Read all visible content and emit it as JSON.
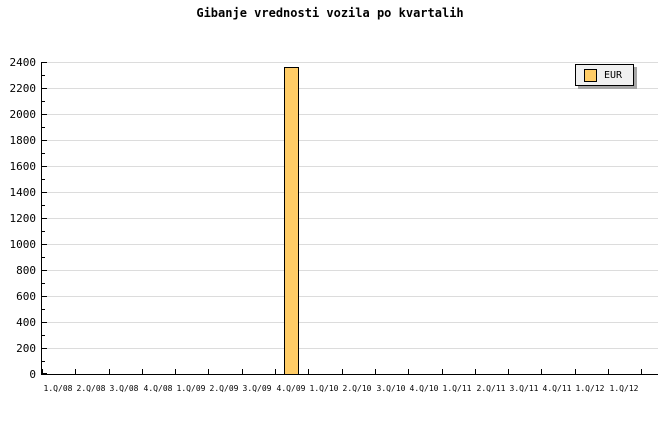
{
  "chart_data": {
    "type": "bar",
    "title": "Gibanje vrednosti vozila po kvartalih",
    "categories": [
      "1.Q/08",
      "2.Q/08",
      "3.Q/08",
      "4.Q/08",
      "1.Q/09",
      "2.Q/09",
      "3.Q/09",
      "4.Q/09",
      "1.Q/10",
      "2.Q/10",
      "3.Q/10",
      "4.Q/10",
      "1.Q/11",
      "2.Q/11",
      "3.Q/11",
      "4.Q/11",
      "1.Q/12",
      "1.Q/12"
    ],
    "series": [
      {
        "name": "EUR",
        "values": [
          0,
          0,
          0,
          0,
          0,
          0,
          0,
          2365,
          0,
          0,
          0,
          0,
          0,
          0,
          0,
          0,
          0,
          0
        ]
      }
    ],
    "xlabel": "",
    "ylabel": "",
    "ylim": [
      0,
      2400
    ],
    "ytick_step": 200,
    "ytick_minor_step": 100,
    "grid": "horizontal-major",
    "legend": {
      "position": "top-right",
      "entries": [
        "EUR"
      ]
    },
    "colors": {
      "bar_fill": "#FFCC66",
      "bar_border": "#000000",
      "gridline": "#DCDCDC",
      "axis": "#000000",
      "text": "#000000",
      "background": "#FFFFFF",
      "legend_bg": "#F0F0F0",
      "legend_border": "#000000",
      "legend_shadow": "#A6A6A6"
    }
  }
}
